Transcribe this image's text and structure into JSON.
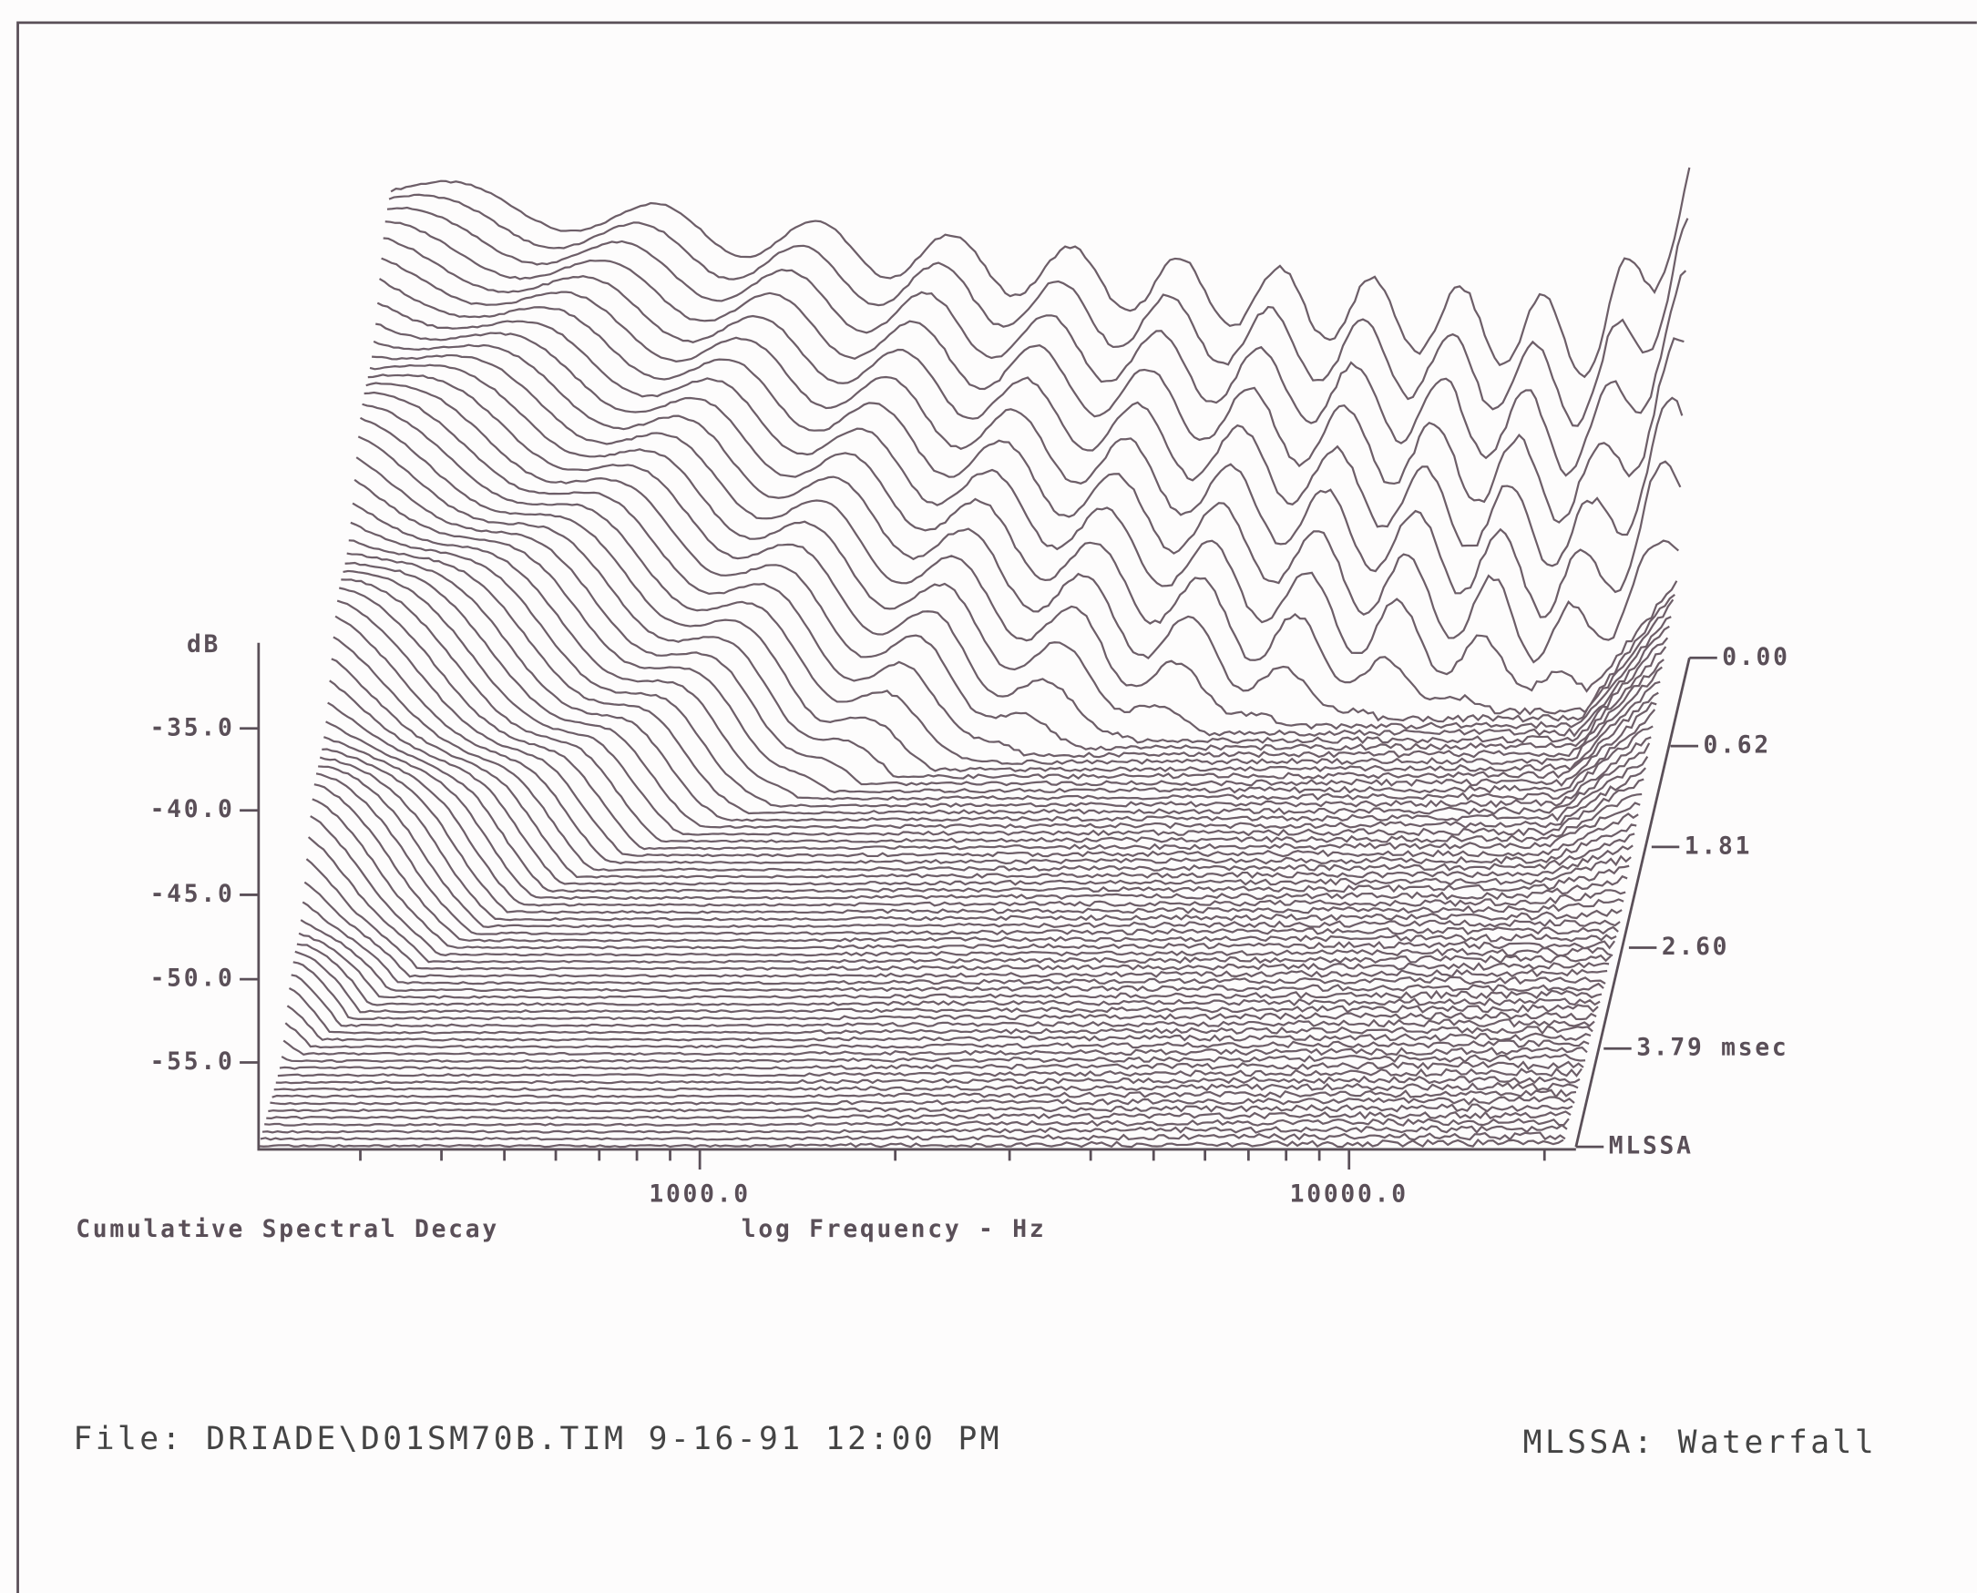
{
  "plot": {
    "y_axis_label": "dB",
    "y_ticks": [
      "-35.0",
      "-40.0",
      "-45.0",
      "-50.0",
      "-55.0"
    ],
    "time_ticks": [
      "0.00",
      "0.62",
      "1.81",
      "2.60",
      "3.79 msec",
      "MLSSA"
    ],
    "x_ticks": [
      "1000.0",
      "10000.0"
    ],
    "caption": "Cumulative Spectral Decay",
    "x_axis_label": "log Frequency - Hz"
  },
  "footer": {
    "file": "File: DRIADE\\D01SM70B.TIM 9-16-91 12:00 PM",
    "program": "MLSSA: Waterfall"
  }
}
